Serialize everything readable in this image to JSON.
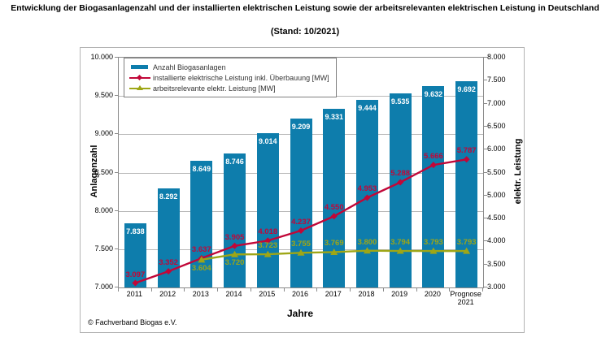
{
  "title": "Entwicklung der Biogasanlagenzahl und der installierten elektrischen Leistung sowie der arbeitsrelevanten elektrischen Leistung in Deutschland",
  "subtitle": "(Stand: 10/2021)",
  "copyright": "© Fachverband Biogas e.V.",
  "colors": {
    "bar": "#0e7dac",
    "line_installed": "#c10738",
    "line_working": "#9ea616",
    "gridline": "#b8b8b8",
    "axis": "#8a8a8a"
  },
  "chart_data": {
    "type": "bar+line",
    "title": "Entwicklung der Biogasanlagenzahl und der installierten elektrischen Leistung sowie der arbeitsrelevanten elektrischen Leistung in Deutschland (Stand: 10/2021)",
    "grid": true,
    "legend_position": "top-left",
    "categories": [
      "2011",
      "2012",
      "2013",
      "2014",
      "2015",
      "2016",
      "2017",
      "2018",
      "2019",
      "2020",
      "Prognose 2021"
    ],
    "series": [
      {
        "name": "Anzahl Biogasanlagen",
        "type": "bar",
        "axis": "left",
        "color": "#0e7dac",
        "values": [
          7838,
          8292,
          8649,
          8746,
          9014,
          9209,
          9331,
          9444,
          9535,
          9632,
          9692
        ],
        "labels": [
          "7.838",
          "8.292",
          "8.649",
          "8.746",
          "9.014",
          "9.209",
          "9.331",
          "9.444",
          "9.535",
          "9.632",
          "9.692"
        ]
      },
      {
        "name": "installierte elektrische Leistung inkl. Überbauung [MW]",
        "type": "line",
        "marker": "diamond",
        "axis": "right",
        "color": "#c10738",
        "values": [
          3097,
          3352,
          3637,
          3905,
          4018,
          4237,
          4550,
          4953,
          5288,
          5666,
          5787
        ],
        "labels": [
          "3.097",
          "3.352",
          "3.637",
          "3.905",
          "4.018",
          "4.237",
          "4.550",
          "4.953",
          "5.288",
          "5.666",
          "5.787"
        ],
        "label_side": [
          "above",
          "above",
          "above",
          "above",
          "above",
          "above",
          "above",
          "above",
          "above",
          "above",
          "above"
        ]
      },
      {
        "name": "arbeitsrelevante elektr. Leistung [MW]",
        "type": "line",
        "marker": "triangle",
        "axis": "right",
        "color": "#9ea616",
        "values": [
          null,
          null,
          3604,
          3720,
          3723,
          3755,
          3769,
          3800,
          3794,
          3793,
          3793
        ],
        "labels": [
          null,
          null,
          "3.604",
          "3.720",
          "3.723",
          "3.755",
          "3.769",
          "3.800",
          "3.794",
          "3.793",
          "3.793"
        ],
        "label_side": [
          null,
          null,
          "below",
          "below",
          "above",
          "above",
          "above",
          "above",
          "above",
          "above",
          "above"
        ]
      }
    ],
    "left_axis": {
      "title": "Anlagenzahl",
      "min": 7000,
      "max": 10000,
      "step": 500,
      "ticks": [
        "10.000",
        "9.500",
        "9.000",
        "8.500",
        "8.000",
        "7.500",
        "7.000"
      ]
    },
    "right_axis": {
      "title": "elektr. Leistung",
      "min": 3000,
      "max": 8000,
      "step": 500,
      "ticks": [
        "8.000",
        "7.500",
        "7.000",
        "6.500",
        "6.000",
        "5.500",
        "5.000",
        "4.500",
        "4.000",
        "3.500",
        "3.000"
      ]
    },
    "x_axis": {
      "title": "Jahre"
    }
  }
}
